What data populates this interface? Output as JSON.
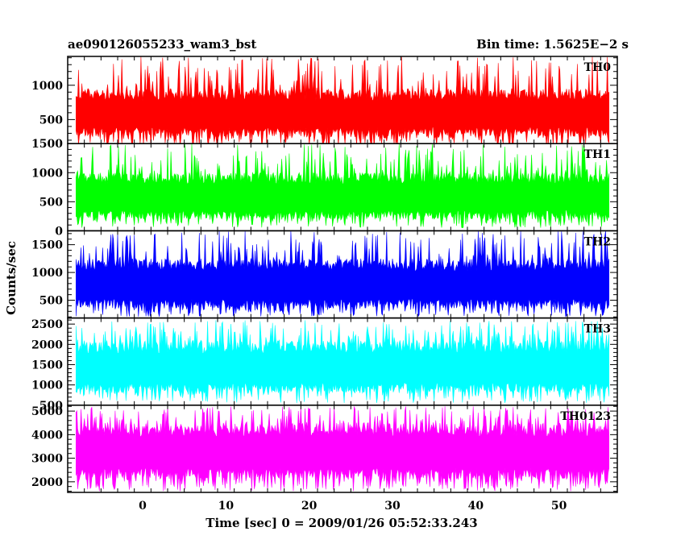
{
  "header": {
    "title": "ae090126055233_wam3_bst",
    "bin_time": "Bin time: 1.5625E−2 s"
  },
  "chart_data": {
    "type": "line",
    "title": "ae090126055233_wam3_bst",
    "xlabel": "Time [sec] 0 = 2009/01/26 05:52:33.243",
    "ylabel": "Counts/sec",
    "xlim": [
      -9,
      57
    ],
    "x_data_range": [
      -8,
      56
    ],
    "xticks": [
      0,
      10,
      20,
      30,
      40,
      50
    ],
    "grid": false,
    "series": [
      {
        "name": "TH0",
        "color": "#ff0000",
        "ylim": [
          150,
          1420
        ],
        "yticks": [
          500,
          1000
        ],
        "typical_range": [
          250,
          950
        ],
        "spike_range": [
          100,
          1420
        ]
      },
      {
        "name": "TH1",
        "color": "#00ff00",
        "ylim": [
          0,
          1500
        ],
        "yticks": [
          0,
          500,
          1000,
          1500
        ],
        "typical_range": [
          200,
          1000
        ],
        "spike_range": [
          50,
          1500
        ]
      },
      {
        "name": "TH2",
        "color": "#0000ff",
        "ylim": [
          180,
          1750
        ],
        "yticks": [
          500,
          1000,
          1500
        ],
        "typical_range": [
          350,
          1250
        ],
        "spike_range": [
          200,
          1750
        ]
      },
      {
        "name": "TH3",
        "color": "#00ffff",
        "ylim": [
          500,
          2650
        ],
        "yticks": [
          500,
          1000,
          1500,
          2000,
          2500
        ],
        "typical_range": [
          800,
          2100
        ],
        "spike_range": [
          550,
          2600
        ]
      },
      {
        "name": "TH0123",
        "color": "#ff00ff",
        "ylim": [
          1550,
          5250
        ],
        "yticks": [
          2000,
          3000,
          4000,
          5000
        ],
        "typical_range": [
          2100,
          4500
        ],
        "spike_range": [
          1600,
          5200
        ]
      }
    ]
  }
}
